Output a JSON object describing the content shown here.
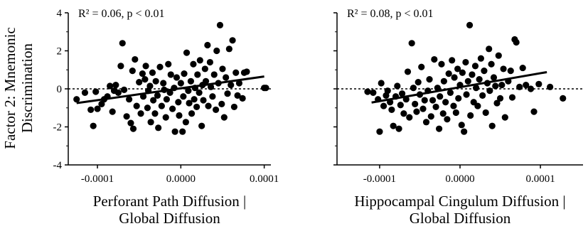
{
  "ylabel_lines": [
    "Factor 2: Mnemonic",
    "Discrimination"
  ],
  "chart_data": [
    {
      "type": "scatter",
      "annotation": "R² = 0.06, p < 0.01",
      "xlabel_lines": [
        "Perforant Path Diffusion |",
        "Global Diffusion"
      ],
      "ylabel": "Factor 2: Mnemonic Discrimination",
      "xlim": [
        -0.000135,
        0.000108
      ],
      "ylim": [
        -4,
        4
      ],
      "xticks": [
        -0.0001,
        0.0,
        0.0001
      ],
      "xtick_labels": [
        "-0.0001",
        "0.0000",
        "0.0001"
      ],
      "yticks": [
        -4,
        -2,
        0,
        2,
        4
      ],
      "ytick_labels": [
        "-4",
        "-2",
        "0",
        "2",
        "4"
      ],
      "reference_line_y": 0,
      "fit_line": {
        "x": [
          -0.000125,
          0.0001
        ],
        "y": [
          -0.75,
          0.65
        ]
      },
      "points": [
        [
          -0.000125,
          -0.55
        ],
        [
          -0.000115,
          -0.2
        ],
        [
          -0.000108,
          -1.1
        ],
        [
          -0.000105,
          -1.95
        ],
        [
          -0.000102,
          -0.15
        ],
        [
          -0.0001,
          -1.05
        ],
        [
          -9.5e-05,
          -0.8
        ],
        [
          -9.2e-05,
          -0.55
        ],
        [
          -8.8e-05,
          -0.4
        ],
        [
          -8.5e-05,
          0.15
        ],
        [
          -8.2e-05,
          -1.2
        ],
        [
          -8e-05,
          -0.1
        ],
        [
          -7.8e-05,
          0.2
        ],
        [
          -7.5e-05,
          -0.2
        ],
        [
          -7.2e-05,
          1.2
        ],
        [
          -7e-05,
          2.4
        ],
        [
          -6.8e-05,
          -0.05
        ],
        [
          -6.5e-05,
          -1.45
        ],
        [
          -6.2e-05,
          -0.55
        ],
        [
          -6e-05,
          -1.8
        ],
        [
          -5.8e-05,
          0.95
        ],
        [
          -5.7e-05,
          -2.1
        ],
        [
          -5.5e-05,
          1.55
        ],
        [
          -5.3e-05,
          -0.9
        ],
        [
          -5e-05,
          0.35
        ],
        [
          -4.8e-05,
          -1.3
        ],
        [
          -4.6e-05,
          0.8
        ],
        [
          -4.5e-05,
          -0.4
        ],
        [
          -4.3e-05,
          0.5
        ],
        [
          -4.2e-05,
          1.2
        ],
        [
          -4e-05,
          -1.0
        ],
        [
          -3.9e-05,
          -0.1
        ],
        [
          -3.7e-05,
          0.15
        ],
        [
          -3.6e-05,
          -1.75
        ],
        [
          -3.4e-05,
          0.85
        ],
        [
          -3.3e-05,
          -0.6
        ],
        [
          -3.1e-05,
          -1.3
        ],
        [
          -3e-05,
          0.4
        ],
        [
          -2.8e-05,
          -0.35
        ],
        [
          -2.7e-05,
          -2.05
        ],
        [
          -2.5e-05,
          1.15
        ],
        [
          -2.3e-05,
          -0.9
        ],
        [
          -2.1e-05,
          0.3
        ],
        [
          -2e-05,
          -0.05
        ],
        [
          -1.8e-05,
          -1.5
        ],
        [
          -1.7e-05,
          -0.55
        ],
        [
          -1.5e-05,
          1.3
        ],
        [
          -1.3e-05,
          -0.2
        ],
        [
          -1.2e-05,
          0.75
        ],
        [
          -1e-05,
          -1.05
        ],
        [
          -8e-06,
          0.05
        ],
        [
          -7e-06,
          -2.25
        ],
        [
          -5e-06,
          0.6
        ],
        [
          -3e-06,
          -0.7
        ],
        [
          -2e-06,
          -1.4
        ],
        [
          0.0,
          0.3
        ],
        [
          2e-06,
          -2.25
        ],
        [
          3e-06,
          -0.4
        ],
        [
          4e-06,
          0.8
        ],
        [
          6e-06,
          -1.75
        ],
        [
          7e-06,
          1.9
        ],
        [
          9e-06,
          -0.1
        ],
        [
          1e-05,
          -0.75
        ],
        [
          1.2e-05,
          0.4
        ],
        [
          1.3e-05,
          -1.3
        ],
        [
          1.5e-05,
          1.3
        ],
        [
          1.6e-05,
          -0.55
        ],
        [
          1.7e-05,
          0.05
        ],
        [
          1.9e-05,
          -0.95
        ],
        [
          2e-05,
          0.75
        ],
        [
          2.2e-05,
          -0.2
        ],
        [
          2.3e-05,
          1.5
        ],
        [
          2.5e-05,
          -1.95
        ],
        [
          2.6e-05,
          0.2
        ],
        [
          2.7e-05,
          -0.6
        ],
        [
          2.9e-05,
          1.05
        ],
        [
          3e-05,
          0.4
        ],
        [
          3.2e-05,
          2.3
        ],
        [
          3.3e-05,
          -0.9
        ],
        [
          3.5e-05,
          1.4
        ],
        [
          3.6e-05,
          0.1
        ],
        [
          3.8e-05,
          -0.4
        ],
        [
          4e-05,
          0.75
        ],
        [
          4.2e-05,
          -1.1
        ],
        [
          4.3e-05,
          2.0
        ],
        [
          4.5e-05,
          0.3
        ],
        [
          4.7e-05,
          3.35
        ],
        [
          4.9e-05,
          -0.8
        ],
        [
          5e-05,
          1.05
        ],
        [
          5.2e-05,
          -1.5
        ],
        [
          5.4e-05,
          0.6
        ],
        [
          5.6e-05,
          -0.25
        ],
        [
          5.8e-05,
          2.1
        ],
        [
          6e-05,
          0.2
        ],
        [
          6.2e-05,
          2.55
        ],
        [
          6.4e-05,
          -0.95
        ],
        [
          6.6e-05,
          0.85
        ],
        [
          6.8e-05,
          -0.35
        ],
        [
          7e-05,
          0.3
        ],
        [
          7.4e-05,
          -0.5
        ],
        [
          7.6e-05,
          0.85
        ],
        [
          7.9e-05,
          0.9
        ],
        [
          0.0001,
          0.05
        ],
        [
          0.000102,
          0.05
        ]
      ]
    },
    {
      "type": "scatter",
      "annotation": "R² = 0.08, p < 0.01",
      "xlabel_lines": [
        "Hippocampal Cingulum Diffusion |",
        "Global Diffusion"
      ],
      "ylabel": "Factor 2: Mnemonic Discrimination",
      "xlim": [
        -0.000153,
        0.000153
      ],
      "ylim": [
        -4,
        4
      ],
      "xticks": [
        -0.0001,
        0.0,
        0.0001
      ],
      "xtick_labels": [
        "-0.0001",
        "0.0000",
        "0.0001"
      ],
      "yticks": [
        -4,
        -2,
        0,
        2,
        4
      ],
      "ytick_labels": [
        "-4",
        "-2",
        "0",
        "2",
        "4"
      ],
      "reference_line_y": 0,
      "fit_line": {
        "x": [
          -0.00011,
          0.000108
        ],
        "y": [
          -0.72,
          0.88
        ]
      },
      "points": [
        [
          -0.000115,
          -0.15
        ],
        [
          -0.000108,
          -0.2
        ],
        [
          -0.000102,
          -0.55
        ],
        [
          -0.0001,
          -2.25
        ],
        [
          -9.8e-05,
          0.3
        ],
        [
          -9.5e-05,
          -0.9
        ],
        [
          -9.2e-05,
          -0.35
        ],
        [
          -9e-05,
          -0.1
        ],
        [
          -8.7e-05,
          -0.7
        ],
        [
          -8.5e-05,
          -1.1
        ],
        [
          -8.3e-05,
          -1.95
        ],
        [
          -8e-05,
          -0.4
        ],
        [
          -7.8e-05,
          0.15
        ],
        [
          -7.6e-05,
          -2.1
        ],
        [
          -7.4e-05,
          -0.85
        ],
        [
          -7.2e-05,
          -0.25
        ],
        [
          -7e-05,
          -1.3
        ],
        [
          -6.7e-05,
          -0.55
        ],
        [
          -6.5e-05,
          0.9
        ],
        [
          -6.3e-05,
          -1.5
        ],
        [
          -6e-05,
          2.4
        ],
        [
          -5.8e-05,
          0.05
        ],
        [
          -5.6e-05,
          -0.8
        ],
        [
          -5.4e-05,
          -1.2
        ],
        [
          -5.2e-05,
          0.35
        ],
        [
          -5e-05,
          -0.3
        ],
        [
          -4.8e-05,
          1.15
        ],
        [
          -4.6e-05,
          -1.05
        ],
        [
          -4.4e-05,
          -0.6
        ],
        [
          -4.2e-05,
          -1.75
        ],
        [
          -4e-05,
          -0.1
        ],
        [
          -3.8e-05,
          0.5
        ],
        [
          -3.6e-05,
          -1.45
        ],
        [
          -3.4e-05,
          -0.6
        ],
        [
          -3.2e-05,
          1.55
        ],
        [
          -3e-05,
          -0.95
        ],
        [
          -2.8e-05,
          0.05
        ],
        [
          -2.6e-05,
          -2.1
        ],
        [
          -2.5e-05,
          -0.4
        ],
        [
          -2.3e-05,
          1.3
        ],
        [
          -2.1e-05,
          -1.3
        ],
        [
          -2e-05,
          0.4
        ],
        [
          -1.8e-05,
          -0.7
        ],
        [
          -1.6e-05,
          -1.6
        ],
        [
          -1.4e-05,
          0.8
        ],
        [
          -1.2e-05,
          -0.2
        ],
        [
          -1e-05,
          1.5
        ],
        [
          -8e-06,
          -0.9
        ],
        [
          -7e-06,
          0.6
        ],
        [
          -5e-06,
          -1.25
        ],
        [
          -3e-06,
          1.05
        ],
        [
          -2e-06,
          -0.5
        ],
        [
          0.0,
          0.2
        ],
        [
          2e-06,
          -1.9
        ],
        [
          3e-06,
          0.85
        ],
        [
          5e-06,
          -2.25
        ],
        [
          7e-06,
          1.4
        ],
        [
          8e-06,
          -0.3
        ],
        [
          1e-05,
          0.4
        ],
        [
          1.2e-05,
          3.35
        ],
        [
          1.3e-05,
          -1.4
        ],
        [
          1.5e-05,
          0.75
        ],
        [
          1.7e-05,
          -0.7
        ],
        [
          1.9e-05,
          1.2
        ],
        [
          2e-05,
          0.05
        ],
        [
          2.2e-05,
          -0.9
        ],
        [
          2.4e-05,
          0.5
        ],
        [
          2.6e-05,
          1.6
        ],
        [
          2.8e-05,
          -0.35
        ],
        [
          3e-05,
          0.95
        ],
        [
          3.2e-05,
          -1.25
        ],
        [
          3.4e-05,
          0.3
        ],
        [
          3.6e-05,
          2.1
        ],
        [
          3.7e-05,
          -0.1
        ],
        [
          3.9e-05,
          1.3
        ],
        [
          4e-05,
          -1.95
        ],
        [
          4.2e-05,
          0.6
        ],
        [
          4.4e-05,
          0.15
        ],
        [
          4.6e-05,
          -0.75
        ],
        [
          4.8e-05,
          1.75
        ],
        [
          5e-05,
          -0.5
        ],
        [
          5.2e-05,
          0.2
        ],
        [
          5.4e-05,
          1.05
        ],
        [
          5.6e-05,
          -1.5
        ],
        [
          6e-05,
          0.4
        ],
        [
          6.3e-05,
          0.95
        ],
        [
          6.5e-05,
          -0.45
        ],
        [
          6.8e-05,
          2.6
        ],
        [
          7e-05,
          2.45
        ],
        [
          7.4e-05,
          0.1
        ],
        [
          7.8e-05,
          1.1
        ],
        [
          8.2e-05,
          0.2
        ],
        [
          8.8e-05,
          0.0
        ],
        [
          9.2e-05,
          -1.2
        ],
        [
          9.8e-05,
          0.25
        ],
        [
          0.000112,
          0.1
        ],
        [
          0.000128,
          -0.5
        ]
      ]
    }
  ]
}
